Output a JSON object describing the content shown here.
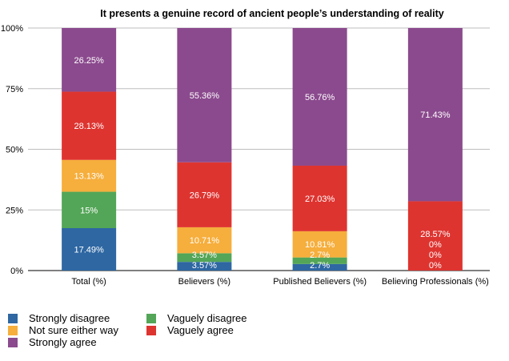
{
  "chart_data": {
    "type": "bar",
    "stacked": true,
    "title": "It presents a genuine record of ancient people’s understanding of reality",
    "categories": [
      "Total (%)",
      "Believers (%)",
      "Published Believers (%)",
      "Believing Professionals (%)"
    ],
    "ylim": [
      0,
      100
    ],
    "yticks": [
      "0%",
      "25%",
      "50%",
      "75%",
      "100%"
    ],
    "grid": true,
    "legend_position": "bottom-left",
    "series": [
      {
        "name": "Strongly disagree",
        "color": "#2e67a2",
        "values": [
          17.49,
          3.57,
          2.7,
          0
        ],
        "labels": [
          "17.49%",
          "3.57%",
          "2.7%",
          "0%"
        ]
      },
      {
        "name": "Vaguely disagree",
        "color": "#53a657",
        "values": [
          15,
          3.57,
          2.7,
          0
        ],
        "labels": [
          "15%",
          "3.57%",
          "2.7%",
          "0%"
        ]
      },
      {
        "name": "Not sure either way",
        "color": "#f6ae3c",
        "values": [
          13.13,
          10.71,
          10.81,
          0
        ],
        "labels": [
          "13.13%",
          "10.71%",
          "10.81%",
          "0%"
        ]
      },
      {
        "name": "Vaguely agree",
        "color": "#de3430",
        "values": [
          28.13,
          26.79,
          27.03,
          28.57
        ],
        "labels": [
          "28.13%",
          "26.79%",
          "27.03%",
          "28.57%"
        ]
      },
      {
        "name": "Strongly agree",
        "color": "#8b4a8e",
        "values": [
          26.25,
          55.36,
          56.76,
          71.43
        ],
        "labels": [
          "26.25%",
          "55.36%",
          "56.76%",
          "71.43%"
        ]
      }
    ]
  },
  "legend_order": [
    0,
    1,
    2,
    3,
    4
  ]
}
